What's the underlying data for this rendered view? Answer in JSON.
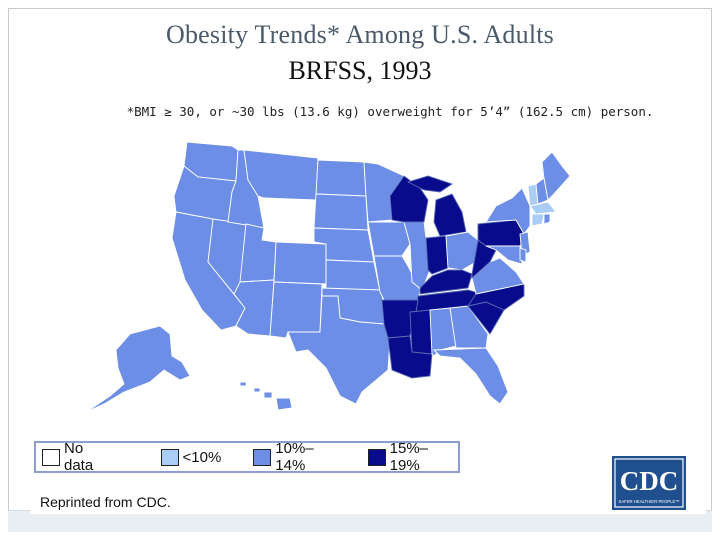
{
  "title": "Obesity Trends* Among U.S. Adults",
  "subtitle": "BRFSS, 1993",
  "footnote": "*BMI ≥ 30, or ~30 lbs (13.6 kg) overweight for 5’4” (162.5 cm) person.",
  "legend": [
    {
      "label": "No data",
      "color": "#ffffff"
    },
    {
      "label": "<10%",
      "color": "#a9cdf5"
    },
    {
      "label": "10%–14%",
      "color": "#6d8ee6"
    },
    {
      "label": "15%–19%",
      "color": "#070b8c"
    }
  ],
  "colors": {
    "no_data": "#ffffff",
    "lt10": "#a9cdf5",
    "p10_14": "#6d8ee6",
    "p15_19": "#070b8c"
  },
  "map_data": {
    "year": 1993,
    "categories": {
      "no_data": [
        "Wyoming"
      ],
      "lt10": [
        "Massachusetts",
        "Connecticut",
        "Vermont"
      ],
      "p10_14": [
        "Washington",
        "Oregon",
        "California",
        "Nevada",
        "Idaho",
        "Montana",
        "Utah",
        "Arizona",
        "Colorado",
        "New Mexico",
        "North Dakota",
        "South Dakota",
        "Nebraska",
        "Kansas",
        "Oklahoma",
        "Texas",
        "Minnesota",
        "Iowa",
        "Missouri",
        "Illinois",
        "Ohio",
        "Alabama",
        "Georgia",
        "Florida",
        "Virginia",
        "Maryland",
        "Delaware",
        "New Jersey",
        "New York",
        "New Hampshire",
        "Maine",
        "Rhode Island",
        "Alaska",
        "Hawaii"
      ],
      "p15_19": [
        "Wisconsin",
        "Michigan",
        "Indiana",
        "Kentucky",
        "West Virginia",
        "Tennessee",
        "North Carolina",
        "South Carolina",
        "Arkansas",
        "Mississippi",
        "Louisiana",
        "Pennsylvania"
      ]
    }
  },
  "source": "Reprinted from CDC.",
  "logo_text": "CDC",
  "logo_tagline": "SAFER·HEALTHIER·PEOPLE™"
}
